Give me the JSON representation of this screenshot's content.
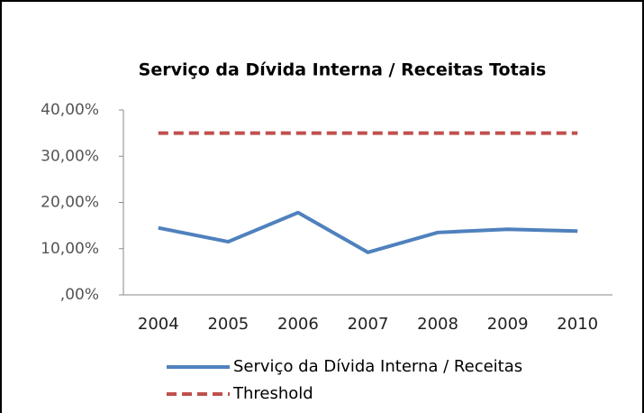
{
  "chart_data": {
    "type": "line",
    "title": "Serviço da Dívida Interna / Receitas Totais",
    "categories": [
      "2004",
      "2005",
      "2006",
      "2007",
      "2008",
      "2009",
      "2010"
    ],
    "series": [
      {
        "name": "Serviço da Dívida Interna / Receitas",
        "color": "#4f81bd",
        "style": "solid",
        "values": [
          14.5,
          11.5,
          17.8,
          9.2,
          13.5,
          14.2,
          13.8
        ]
      },
      {
        "name": "Threshold",
        "color": "#c0504d",
        "style": "dashed",
        "values": [
          35,
          35,
          35,
          35,
          35,
          35,
          35
        ]
      }
    ],
    "ylim": [
      0,
      40
    ],
    "yticks": [
      {
        "value": 0,
        "label": ",00%"
      },
      {
        "value": 10,
        "label": "10,00%"
      },
      {
        "value": 20,
        "label": "20,00%"
      },
      {
        "value": 30,
        "label": "30,00%"
      },
      {
        "value": 40,
        "label": "40,00%"
      }
    ],
    "grid": false,
    "legend": "bottom"
  }
}
